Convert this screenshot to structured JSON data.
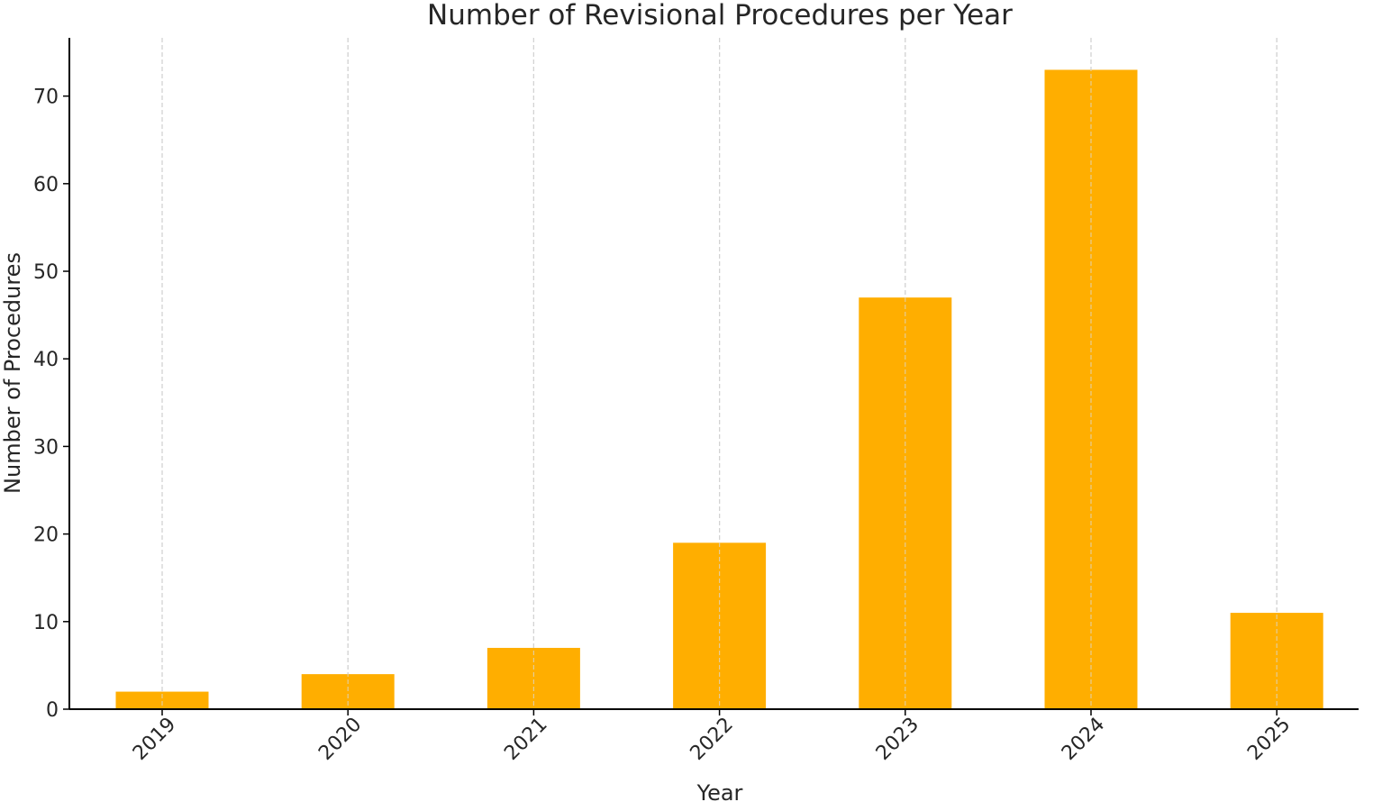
{
  "chart_data": {
    "type": "bar",
    "title": "Number of Revisional Procedures per Year",
    "xlabel": "Year",
    "ylabel": "Number of Procedures",
    "categories": [
      "2019",
      "2020",
      "2021",
      "2022",
      "2023",
      "2024",
      "2025"
    ],
    "values": [
      2,
      4,
      7,
      19,
      47,
      73,
      11
    ],
    "ylim": [
      0,
      76.65
    ],
    "yticks": [
      0,
      10,
      20,
      30,
      40,
      50,
      60,
      70
    ],
    "bar_color": "#FFAE00",
    "grid": "x-axis dashed",
    "legend": "none"
  }
}
